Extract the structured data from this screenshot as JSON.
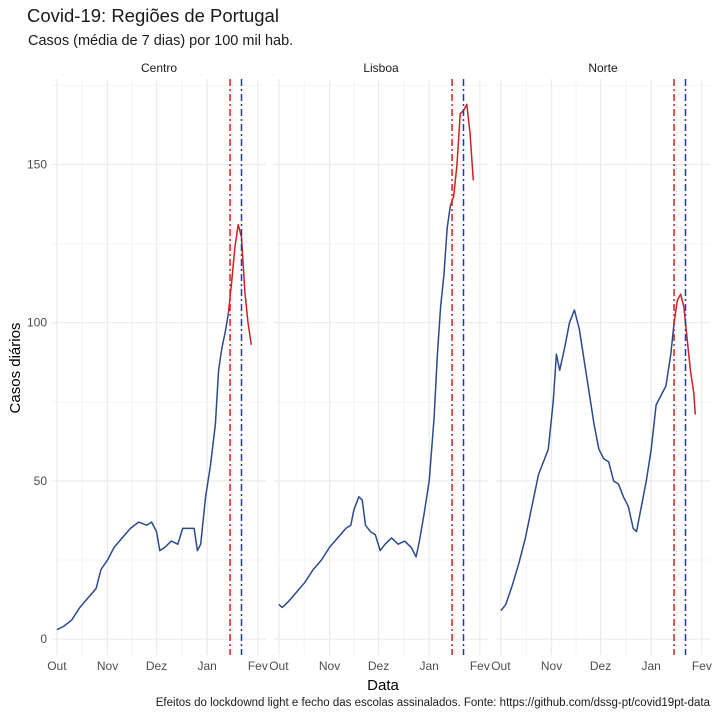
{
  "header": {
    "title": "Covid-19: Regiões de Portugal",
    "subtitle": "Casos (média de 7 dias) por 100 mil hab."
  },
  "footer": {
    "caption": "Efeitos do lockdownd light e fecho das escolas assinalados. Fonte: https://github.com/dssg-pt/covid19pt-data"
  },
  "colors": {
    "line": "#2b4a8b",
    "line_after_lockdown": "#cc2222",
    "lockdown_vline": "#cc2222",
    "schools_vline": "#2233cc",
    "grid_major": "#ebebeb",
    "grid_minor": "#f4f4f4"
  },
  "chart_data": {
    "type": "line",
    "facet_by": "region",
    "xlabel": "Data",
    "ylabel": "Casos diários",
    "x_ticks": [
      "Out",
      "Nov",
      "Dez",
      "Jan",
      "Fev"
    ],
    "x_tick_dates": [
      "2020-10-01",
      "2020-11-01",
      "2020-12-01",
      "2021-01-01",
      "2021-02-01"
    ],
    "xlim": [
      "2020-09-28",
      "2021-02-06"
    ],
    "y_ticks": [
      0,
      50,
      100,
      150
    ],
    "ylim": [
      -5,
      177
    ],
    "grid": true,
    "vlines": [
      {
        "date": "2021-01-15",
        "color": "#cc2222",
        "style": "dashdot"
      },
      {
        "date": "2021-01-22",
        "color": "#2233cc",
        "style": "dashdot"
      }
    ],
    "facets": [
      {
        "name": "Centro",
        "points": [
          [
            "2020-10-01",
            3
          ],
          [
            "2020-10-05",
            4
          ],
          [
            "2020-10-10",
            6
          ],
          [
            "2020-10-15",
            10
          ],
          [
            "2020-10-20",
            13
          ],
          [
            "2020-10-25",
            16
          ],
          [
            "2020-10-28",
            22
          ],
          [
            "2020-11-01",
            25
          ],
          [
            "2020-11-05",
            29
          ],
          [
            "2020-11-10",
            32
          ],
          [
            "2020-11-15",
            35
          ],
          [
            "2020-11-20",
            37
          ],
          [
            "2020-11-25",
            36
          ],
          [
            "2020-11-28",
            37
          ],
          [
            "2020-12-01",
            34
          ],
          [
            "2020-12-03",
            28
          ],
          [
            "2020-12-06",
            29
          ],
          [
            "2020-12-10",
            31
          ],
          [
            "2020-12-14",
            30
          ],
          [
            "2020-12-17",
            35
          ],
          [
            "2020-12-20",
            35
          ],
          [
            "2020-12-24",
            35
          ],
          [
            "2020-12-26",
            28
          ],
          [
            "2020-12-28",
            30
          ],
          [
            "2020-12-31",
            45
          ],
          [
            "2021-01-03",
            55
          ],
          [
            "2021-01-06",
            68
          ],
          [
            "2021-01-08",
            85
          ],
          [
            "2021-01-10",
            92
          ],
          [
            "2021-01-12",
            97
          ],
          [
            "2021-01-14",
            103
          ],
          [
            "2021-01-16",
            113
          ],
          [
            "2021-01-18",
            124
          ],
          [
            "2021-01-20",
            131
          ],
          [
            "2021-01-22",
            127
          ],
          [
            "2021-01-24",
            110
          ],
          [
            "2021-01-26",
            100
          ],
          [
            "2021-01-28",
            93
          ]
        ]
      },
      {
        "name": "Lisboa",
        "points": [
          [
            "2020-10-01",
            11
          ],
          [
            "2020-10-03",
            10
          ],
          [
            "2020-10-07",
            12
          ],
          [
            "2020-10-12",
            15
          ],
          [
            "2020-10-17",
            18
          ],
          [
            "2020-10-22",
            22
          ],
          [
            "2020-10-27",
            25
          ],
          [
            "2020-11-01",
            29
          ],
          [
            "2020-11-06",
            32
          ],
          [
            "2020-11-11",
            35
          ],
          [
            "2020-11-14",
            36
          ],
          [
            "2020-11-16",
            41
          ],
          [
            "2020-11-19",
            45
          ],
          [
            "2020-11-21",
            44
          ],
          [
            "2020-11-23",
            36
          ],
          [
            "2020-11-26",
            34
          ],
          [
            "2020-11-29",
            33
          ],
          [
            "2020-12-02",
            28
          ],
          [
            "2020-12-05",
            30
          ],
          [
            "2020-12-09",
            32
          ],
          [
            "2020-12-13",
            30
          ],
          [
            "2020-12-17",
            31
          ],
          [
            "2020-12-21",
            29
          ],
          [
            "2020-12-24",
            26
          ],
          [
            "2020-12-26",
            31
          ],
          [
            "2020-12-29",
            40
          ],
          [
            "2021-01-01",
            50
          ],
          [
            "2021-01-04",
            70
          ],
          [
            "2021-01-06",
            90
          ],
          [
            "2021-01-08",
            105
          ],
          [
            "2021-01-10",
            115
          ],
          [
            "2021-01-12",
            130
          ],
          [
            "2021-01-14",
            137
          ],
          [
            "2021-01-16",
            140
          ],
          [
            "2021-01-18",
            150
          ],
          [
            "2021-01-20",
            166
          ],
          [
            "2021-01-22",
            167
          ],
          [
            "2021-01-24",
            169
          ],
          [
            "2021-01-26",
            160
          ],
          [
            "2021-01-28",
            145
          ]
        ]
      },
      {
        "name": "Norte",
        "points": [
          [
            "2020-10-01",
            9
          ],
          [
            "2020-10-04",
            11
          ],
          [
            "2020-10-08",
            17
          ],
          [
            "2020-10-12",
            24
          ],
          [
            "2020-10-16",
            32
          ],
          [
            "2020-10-20",
            42
          ],
          [
            "2020-10-24",
            52
          ],
          [
            "2020-10-27",
            56
          ],
          [
            "2020-10-30",
            60
          ],
          [
            "2020-11-02",
            75
          ],
          [
            "2020-11-04",
            90
          ],
          [
            "2020-11-06",
            85
          ],
          [
            "2020-11-09",
            92
          ],
          [
            "2020-11-12",
            100
          ],
          [
            "2020-11-15",
            104
          ],
          [
            "2020-11-18",
            98
          ],
          [
            "2020-11-21",
            88
          ],
          [
            "2020-11-24",
            78
          ],
          [
            "2020-11-27",
            68
          ],
          [
            "2020-11-30",
            60
          ],
          [
            "2020-12-03",
            57
          ],
          [
            "2020-12-06",
            56
          ],
          [
            "2020-12-09",
            50
          ],
          [
            "2020-12-12",
            49
          ],
          [
            "2020-12-15",
            45
          ],
          [
            "2020-12-18",
            42
          ],
          [
            "2020-12-21",
            35
          ],
          [
            "2020-12-23",
            34
          ],
          [
            "2020-12-26",
            42
          ],
          [
            "2020-12-29",
            50
          ],
          [
            "2021-01-01",
            60
          ],
          [
            "2021-01-04",
            74
          ],
          [
            "2021-01-07",
            77
          ],
          [
            "2021-01-10",
            80
          ],
          [
            "2021-01-13",
            90
          ],
          [
            "2021-01-15",
            100
          ],
          [
            "2021-01-17",
            107
          ],
          [
            "2021-01-19",
            109
          ],
          [
            "2021-01-21",
            105
          ],
          [
            "2021-01-23",
            95
          ],
          [
            "2021-01-25",
            85
          ],
          [
            "2021-01-27",
            78
          ],
          [
            "2021-01-28",
            71
          ]
        ]
      }
    ]
  }
}
